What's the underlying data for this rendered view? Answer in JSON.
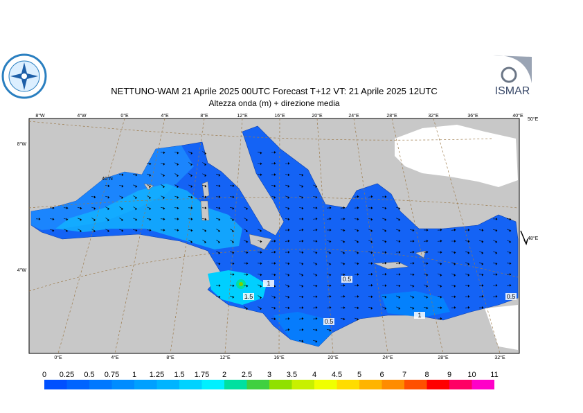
{
  "header": {
    "title": "NETTUNO-WAM  21   Aprile  2025 00UTC Forecast T+12 VT: 21   Aprile  2025 12UTC",
    "subtitle": "Altezza onda (m) + direzione media",
    "logo_right": "ISMAR"
  },
  "map": {
    "top_lon_labels": [
      "8°W",
      "4°W",
      "0°E",
      "4°E",
      "8°E",
      "12°E",
      "16°E",
      "20°E",
      "24°E",
      "28°E",
      "32°E",
      "36°E",
      "40°E"
    ],
    "bottom_lon_labels": [
      "0°E",
      "4°E",
      "8°E",
      "12°E",
      "16°E",
      "20°E",
      "24°E",
      "28°E",
      "32°E"
    ],
    "left_labels": [
      "8°W",
      "4°W"
    ],
    "right_labels": [
      "50°E",
      "48°E"
    ],
    "inner_labels": [
      "40°N"
    ],
    "contour_labels": [
      "1",
      "0.5",
      "1.5",
      "0.5",
      "1",
      "0.5"
    ]
  },
  "colorbar": {
    "labels": [
      "0",
      "0.25",
      "0.5",
      "0.75",
      "1",
      "1.25",
      "1.5",
      "1.75",
      "2",
      "2.5",
      "3",
      "3.5",
      "4",
      "4.5",
      "5",
      "6",
      "7",
      "8",
      "9",
      "10",
      "11"
    ],
    "colors": [
      "#0050ff",
      "#0064ff",
      "#0078ff",
      "#008cff",
      "#00a0ff",
      "#00b4ff",
      "#00d2ff",
      "#00f0ff",
      "#00e0a0",
      "#40d040",
      "#90e000",
      "#c8f000",
      "#f0ff00",
      "#ffdc00",
      "#ffb400",
      "#ff8c00",
      "#ff5000",
      "#ff0000",
      "#ff0064",
      "#ff00c8"
    ]
  }
}
